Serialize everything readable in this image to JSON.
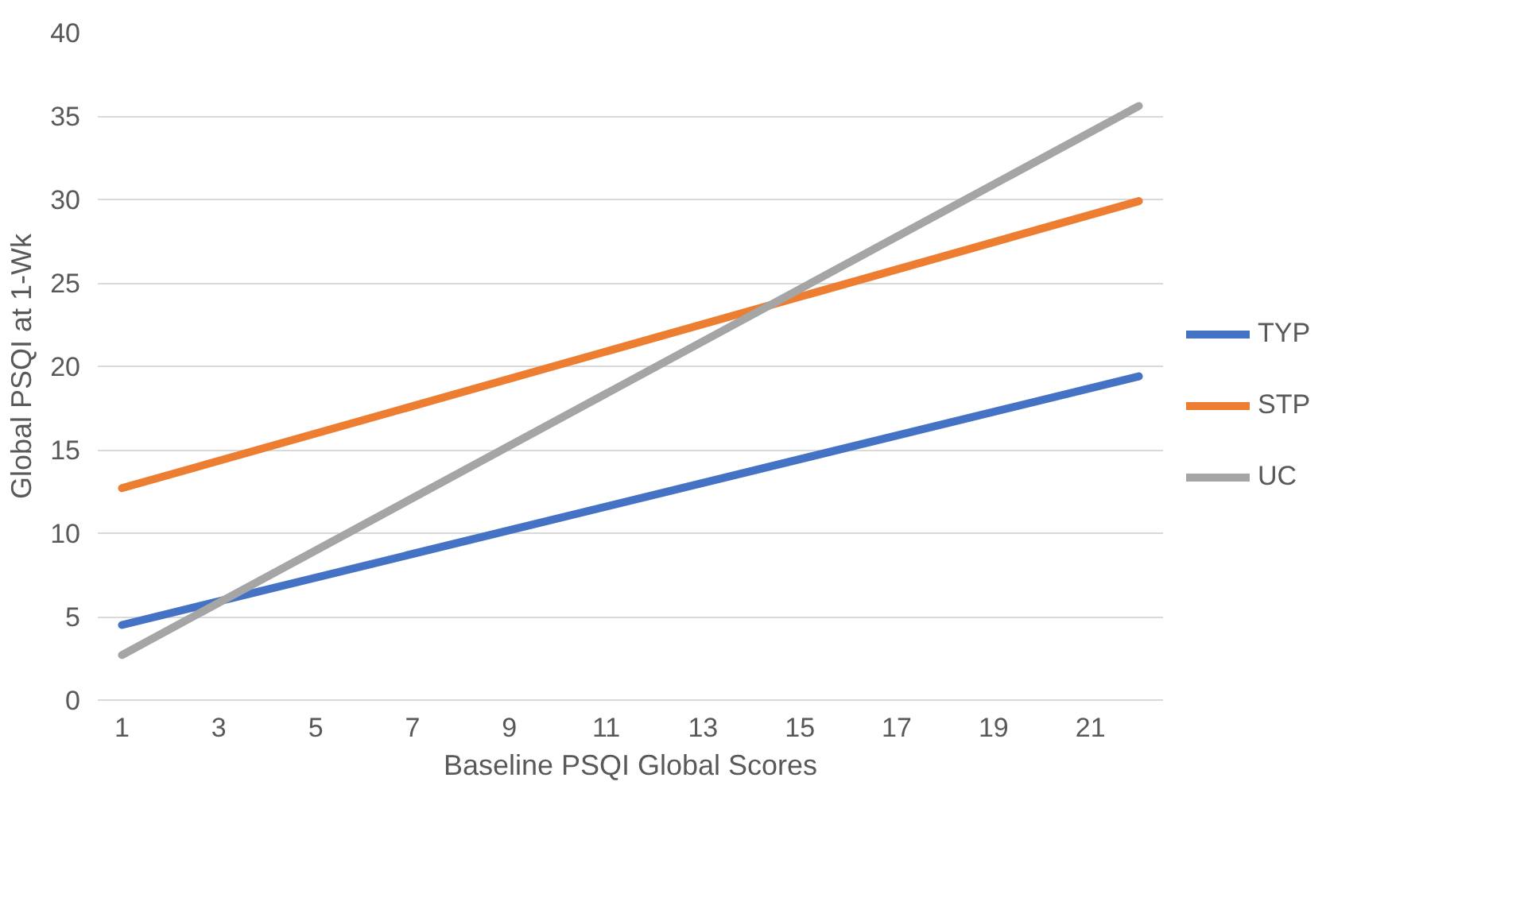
{
  "chart_data": {
    "type": "line",
    "xlabel": "Baseline PSQI Global Scores",
    "ylabel": "Global PSQI at 1-Wk",
    "x": [
      1,
      22
    ],
    "xlim": [
      0.5,
      22.5
    ],
    "xticks": [
      1,
      3,
      5,
      7,
      9,
      11,
      13,
      15,
      17,
      19,
      21
    ],
    "ylim": [
      0,
      40
    ],
    "yticks": [
      0,
      5,
      10,
      15,
      20,
      25,
      30,
      35,
      40
    ],
    "grid": "y",
    "legend": "right",
    "line_style": "solid",
    "marker": "none",
    "series": [
      {
        "name": "TYP",
        "color": "#4472c4",
        "values": [
          4.5,
          19.4
        ]
      },
      {
        "name": "STP",
        "color": "#ed7d31",
        "values": [
          12.7,
          29.9
        ]
      },
      {
        "name": "UC",
        "color": "#a5a5a5",
        "values": [
          2.7,
          35.6
        ]
      }
    ]
  }
}
